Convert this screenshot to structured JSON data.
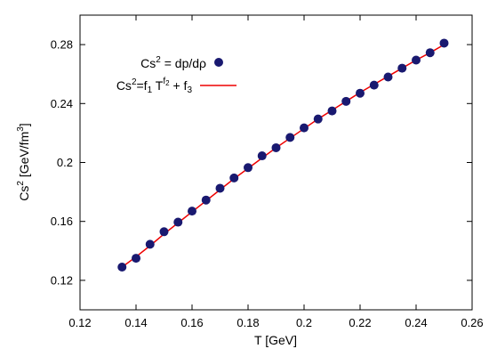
{
  "chart_data": {
    "type": "scatter",
    "xlabel": "T [GeV]",
    "ylabel_main": "Cs",
    "ylabel_sup": "2",
    "ylabel_unit_open": " [GeV/fm",
    "ylabel_unit_sup": "3",
    "ylabel_unit_close": "]",
    "xlim": [
      0.12,
      0.26
    ],
    "ylim": [
      0.1,
      0.3
    ],
    "xticks": [
      0.12,
      0.14,
      0.16,
      0.18,
      0.2,
      0.22,
      0.24,
      0.26
    ],
    "xtick_labels": [
      "0.12",
      "0.14",
      "0.16",
      "0.18",
      "0.2",
      "0.22",
      "0.24",
      "0.26"
    ],
    "yticks": [
      0.12,
      0.16,
      0.2,
      0.24,
      0.28
    ],
    "ytick_labels": [
      "0.12",
      "0.16",
      "0.2",
      "0.24",
      "0.28"
    ],
    "grid": false,
    "legend_position": "top-left",
    "legend": {
      "points": {
        "base": "Cs",
        "sup": "2",
        "rest": " = dp/dρ"
      },
      "fit": {
        "base": "Cs",
        "sup": "2",
        "eq_part1": "=f",
        "sub1": "1",
        "eq_part2": " T",
        "exp_f": "f",
        "exp_sub": "2",
        "eq_part3": " + f",
        "sub3": "3"
      }
    },
    "series": [
      {
        "kind": "points",
        "color": "#191970",
        "x": [
          0.135,
          0.14,
          0.145,
          0.15,
          0.155,
          0.16,
          0.165,
          0.17,
          0.175,
          0.18,
          0.185,
          0.19,
          0.195,
          0.2,
          0.205,
          0.21,
          0.215,
          0.22,
          0.225,
          0.23,
          0.235,
          0.24,
          0.245,
          0.25
        ],
        "y": [
          0.129,
          0.135,
          0.1445,
          0.153,
          0.1595,
          0.167,
          0.1745,
          0.1825,
          0.1895,
          0.1965,
          0.2045,
          0.21,
          0.217,
          0.2235,
          0.2295,
          0.235,
          0.2415,
          0.247,
          0.2525,
          0.258,
          0.264,
          0.2695,
          0.2745,
          0.281
        ]
      },
      {
        "kind": "line",
        "color": "#ee0000",
        "x": [
          0.135,
          0.14,
          0.145,
          0.15,
          0.155,
          0.16,
          0.165,
          0.17,
          0.175,
          0.18,
          0.185,
          0.19,
          0.195,
          0.2,
          0.205,
          0.21,
          0.215,
          0.22,
          0.225,
          0.23,
          0.235,
          0.24,
          0.245,
          0.25
        ],
        "y": [
          0.129,
          0.136,
          0.1435,
          0.1515,
          0.159,
          0.1665,
          0.174,
          0.1815,
          0.189,
          0.196,
          0.203,
          0.21,
          0.2165,
          0.223,
          0.2295,
          0.2355,
          0.2415,
          0.2475,
          0.253,
          0.2585,
          0.264,
          0.2695,
          0.2745,
          0.28
        ]
      }
    ]
  }
}
